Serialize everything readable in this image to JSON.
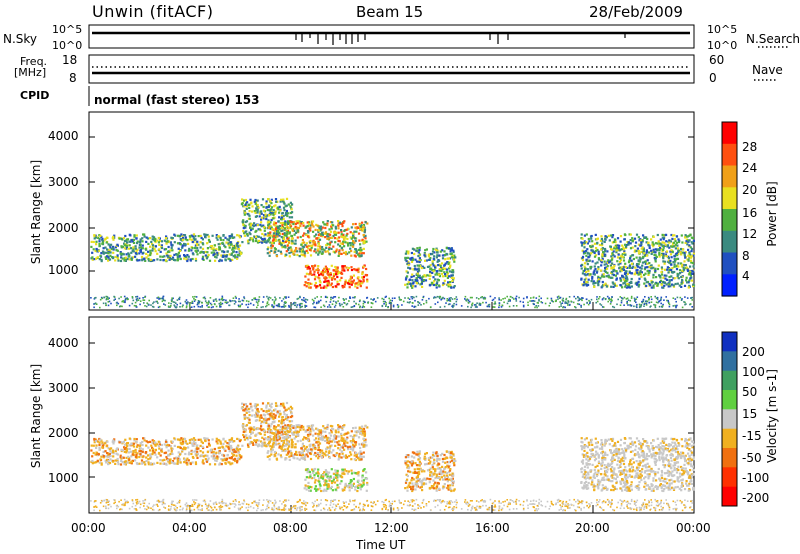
{
  "header": {
    "station": "Unwin (fitACF)",
    "beam": "Beam 15",
    "date": "28/Feb/2009"
  },
  "strips": {
    "nsky_label": "N.Sky",
    "nsearch_label": "N.Search",
    "left_scale_top": "10^5",
    "left_scale_bottom": "10^0",
    "right_scale_top": "10^5",
    "right_scale_bottom": "10^0",
    "freq_label": "Freq.",
    "freq_unit": "[MHz]",
    "freq_ticks": [
      "18",
      "8"
    ],
    "nave_label": "Nave",
    "nave_ticks": [
      "60",
      "0"
    ],
    "cpid_label": "CPID",
    "cpid_text": "normal (fast stereo) 153"
  },
  "chart_data": [
    {
      "type": "heatmap",
      "panel": "power",
      "ylabel": "Slant Range [km]",
      "yticks": [
        "1000",
        "2000",
        "3000",
        "4000"
      ],
      "ylim": [
        200,
        4600
      ],
      "xlim": [
        "00:00",
        "24:00"
      ],
      "colorbar": {
        "label": "Power [dB]",
        "ticks": [
          "4",
          "8",
          "12",
          "16",
          "20",
          "24",
          "28"
        ],
        "colors": [
          "#0020ff",
          "#2050c0",
          "#3a8a80",
          "#50b040",
          "#e8e020",
          "#f0a018",
          "#ff5010",
          "#ff0000"
        ]
      },
      "echo_regions": [
        {
          "t": [
            0.0,
            6.0
          ],
          "range": [
            1300,
            1900
          ],
          "level": "moderate"
        },
        {
          "t": [
            6.0,
            8.0
          ],
          "range": [
            1700,
            2700
          ],
          "level": "moderate"
        },
        {
          "t": [
            7.0,
            11.0
          ],
          "range": [
            1400,
            2200
          ],
          "level": "strong"
        },
        {
          "t": [
            8.5,
            11.0
          ],
          "range": [
            700,
            1200
          ],
          "level": "very strong"
        },
        {
          "t": [
            12.5,
            14.5
          ],
          "range": [
            700,
            1600
          ],
          "level": "moderate"
        },
        {
          "t": [
            19.5,
            24.0
          ],
          "range": [
            700,
            1900
          ],
          "level": "moderate"
        }
      ]
    },
    {
      "type": "heatmap",
      "panel": "velocity",
      "ylabel": "Slant Range [km]",
      "yticks": [
        "1000",
        "2000",
        "3000",
        "4000"
      ],
      "ylim": [
        200,
        4600
      ],
      "xlim": [
        "00:00",
        "24:00"
      ],
      "xticks": [
        "00:00",
        "04:00",
        "08:00",
        "12:00",
        "16:00",
        "20:00",
        "00:00"
      ],
      "xlabel": "Time UT",
      "colorbar": {
        "label": "Velocity [m s-1]",
        "ticks": [
          "200",
          "100",
          "50",
          "15",
          "-15",
          "-50",
          "-100",
          "-200"
        ],
        "colors": [
          "#1030c0",
          "#3070a0",
          "#40a060",
          "#60d040",
          "#c8c8c8",
          "#f0b020",
          "#f07010",
          "#ff3000",
          "#ff0000"
        ]
      }
    }
  ]
}
